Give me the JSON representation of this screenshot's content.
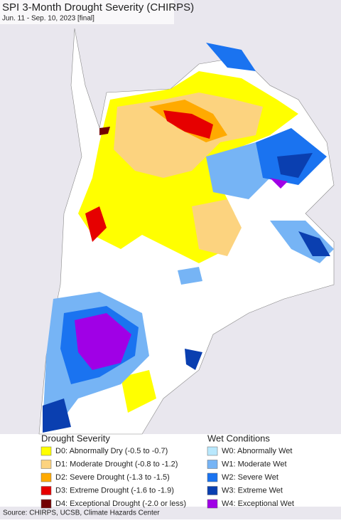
{
  "title": "SPI 3-Month Drought Severity (CHIRPS)",
  "subtitle": "Jun. 11 - Sep. 10, 2023 [final]",
  "legend": {
    "drought": {
      "title": "Drought Severity",
      "items": [
        {
          "label": "D0: Abnormally Dry (-0.5 to -0.7)",
          "color": "#ffff00"
        },
        {
          "label": "D1: Moderate Drought (-0.8 to -1.2)",
          "color": "#fcd37f"
        },
        {
          "label": "D2: Severe Drought (-1.3 to -1.5)",
          "color": "#ffaa00"
        },
        {
          "label": "D3: Extreme Drought (-1.6 to -1.9)",
          "color": "#e60000"
        },
        {
          "label": "D4: Exceptional Drought (-2.0 or less)",
          "color": "#730000"
        }
      ]
    },
    "wet": {
      "title": "Wet Conditions",
      "items": [
        {
          "label": "W0: Abnormally Wet",
          "color": "#b9e8fd"
        },
        {
          "label": "W1: Moderate Wet",
          "color": "#76b4f5"
        },
        {
          "label": "W2: Severe Wet",
          "color": "#1a73f0"
        },
        {
          "label": "W3: Extreme Wet",
          "color": "#0a3fb0"
        },
        {
          "label": "W4: Exceptional Wet",
          "color": "#a000e6"
        }
      ]
    }
  },
  "source": "Source: CHIRPS, UCSB, Climate Hazards Center"
}
